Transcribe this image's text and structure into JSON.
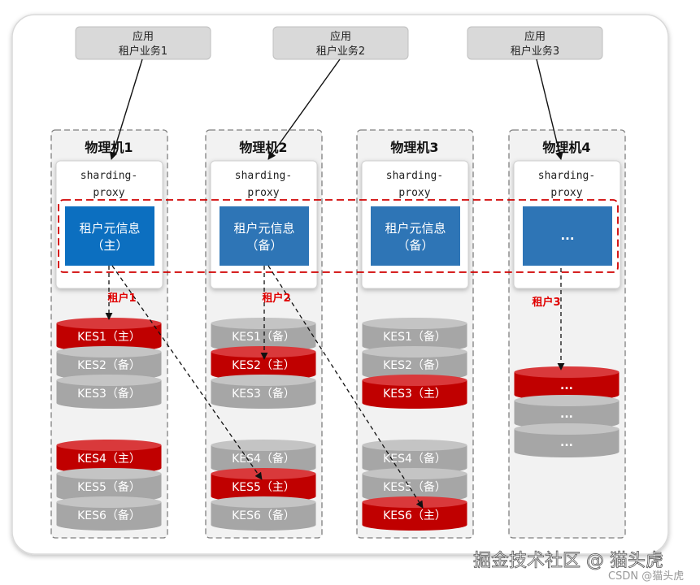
{
  "colors": {
    "master": "#c00000",
    "master_top": "#d9393b",
    "slave": "#a6a6a6",
    "slave_top": "#c4c4c4",
    "meta_master": "#0c6fc0",
    "meta_slave": "#2e75b6",
    "tenant_label": "#e00000"
  },
  "apps": [
    {
      "line1": "应用",
      "line2": "租户业务1"
    },
    {
      "line1": "应用",
      "line2": "租户业务2"
    },
    {
      "line1": "应用",
      "line2": "租户业务3"
    }
  ],
  "machines": [
    {
      "title": "物理机1",
      "proxy_line1": "sharding-",
      "proxy_line2": "proxy",
      "meta_line1": "租户元信息",
      "meta_line2": "（主）",
      "meta_role": "master",
      "groups": [
        [
          {
            "label": "KES1（主）",
            "role": "master"
          },
          {
            "label": "KES2（备）",
            "role": "slave"
          },
          {
            "label": "KES3（备）",
            "role": "slave"
          }
        ],
        [
          {
            "label": "KES4（主）",
            "role": "master"
          },
          {
            "label": "KES5（备）",
            "role": "slave"
          },
          {
            "label": "KES6（备）",
            "role": "slave"
          }
        ]
      ]
    },
    {
      "title": "物理机2",
      "proxy_line1": "sharding-",
      "proxy_line2": "proxy",
      "meta_line1": "租户元信息",
      "meta_line2": "（备）",
      "meta_role": "slave",
      "groups": [
        [
          {
            "label": "KES1（备）",
            "role": "slave"
          },
          {
            "label": "KES2（主）",
            "role": "master"
          },
          {
            "label": "KES3（备）",
            "role": "slave"
          }
        ],
        [
          {
            "label": "KES4（备）",
            "role": "slave"
          },
          {
            "label": "KES5（主）",
            "role": "master"
          },
          {
            "label": "KES6（备）",
            "role": "slave"
          }
        ]
      ]
    },
    {
      "title": "物理机3",
      "proxy_line1": "sharding-",
      "proxy_line2": "proxy",
      "meta_line1": "租户元信息",
      "meta_line2": "（备）",
      "meta_role": "slave",
      "groups": [
        [
          {
            "label": "KES1（备）",
            "role": "slave"
          },
          {
            "label": "KES2（备）",
            "role": "slave"
          },
          {
            "label": "KES3（主）",
            "role": "master"
          }
        ],
        [
          {
            "label": "KES4（备）",
            "role": "slave"
          },
          {
            "label": "KES5（备）",
            "role": "slave"
          },
          {
            "label": "KES6（主）",
            "role": "master"
          }
        ]
      ]
    },
    {
      "title": "物理机4",
      "proxy_line1": "sharding-",
      "proxy_line2": "proxy",
      "meta_line1": "...",
      "meta_line2": "",
      "meta_role": "slave",
      "groups": [
        [
          {
            "label": "...",
            "role": "master"
          },
          {
            "label": "...",
            "role": "slave"
          },
          {
            "label": "...",
            "role": "slave"
          }
        ]
      ]
    }
  ],
  "tenants": [
    "租户1",
    "租户2",
    "租户3"
  ],
  "watermark": "掘金技术社区 @ 猫头虎",
  "credit": "CSDN @猫头虎"
}
